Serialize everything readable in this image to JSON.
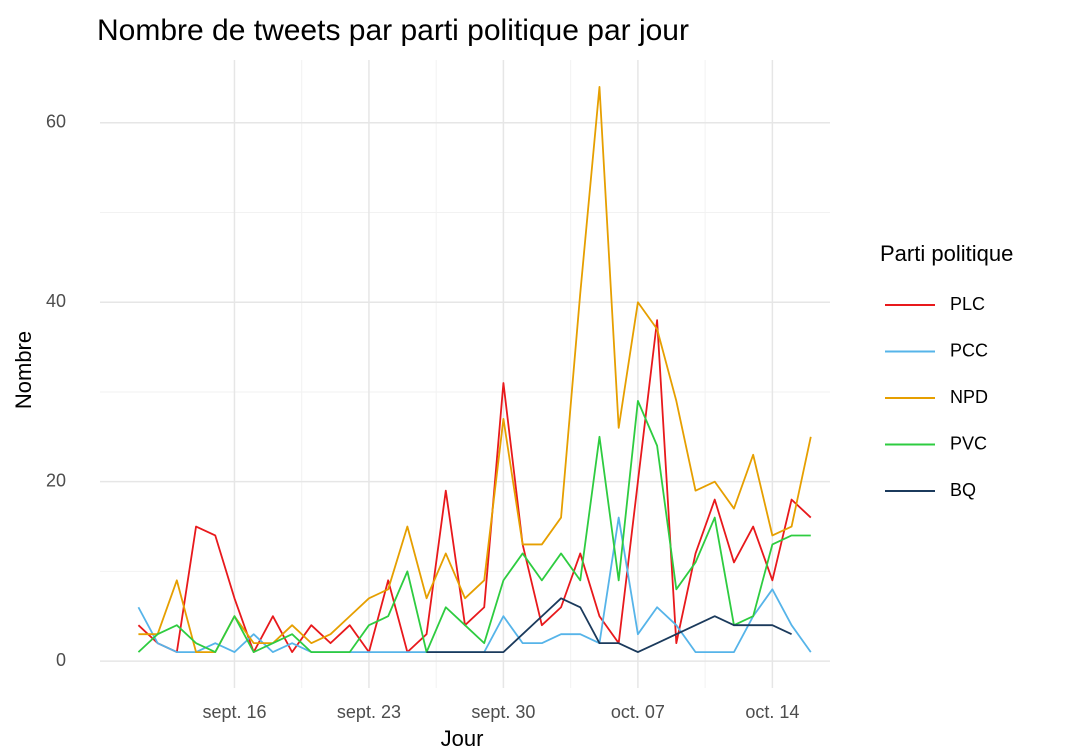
{
  "chart_data": {
    "type": "line",
    "title": "Nombre de tweets par parti politique par jour",
    "x_label": "Jour",
    "y_label": "Nombre",
    "legend_title": "Parti politique",
    "x": [
      "09-11",
      "09-12",
      "09-13",
      "09-14",
      "09-15",
      "09-16",
      "09-17",
      "09-18",
      "09-19",
      "09-20",
      "09-21",
      "09-22",
      "09-23",
      "09-24",
      "09-25",
      "09-26",
      "09-27",
      "09-28",
      "09-29",
      "09-30",
      "10-01",
      "10-02",
      "10-03",
      "10-04",
      "10-05",
      "10-06",
      "10-07",
      "10-08",
      "10-09",
      "10-10",
      "10-11",
      "10-12",
      "10-13",
      "10-14",
      "10-15",
      "10-16"
    ],
    "series": [
      {
        "name": "PLC",
        "color": "#e8191c",
        "values": [
          4,
          2,
          1,
          15,
          14,
          7,
          1,
          5,
          1,
          4,
          2,
          4,
          1,
          9,
          1,
          3,
          19,
          4,
          6,
          31,
          13,
          4,
          6,
          12,
          5,
          2,
          20,
          38,
          2,
          12,
          18,
          11,
          15,
          9,
          18,
          16
        ]
      },
      {
        "name": "PCC",
        "color": "#56b4e9",
        "values": [
          6,
          2,
          1,
          1,
          2,
          1,
          3,
          1,
          2,
          1,
          1,
          1,
          1,
          1,
          1,
          1,
          1,
          1,
          1,
          5,
          2,
          2,
          3,
          3,
          2,
          16,
          3,
          6,
          4,
          1,
          1,
          1,
          5,
          8,
          4,
          1
        ]
      },
      {
        "name": "NPD",
        "color": "#e69f00",
        "values": [
          3,
          3,
          9,
          1,
          1,
          5,
          2,
          2,
          4,
          2,
          3,
          5,
          7,
          8,
          15,
          7,
          12,
          7,
          9,
          27,
          13,
          13,
          16,
          41,
          64,
          26,
          40,
          37,
          29,
          19,
          20,
          17,
          23,
          14,
          15,
          25
        ]
      },
      {
        "name": "PVC",
        "color": "#2ecc40",
        "values": [
          1,
          3,
          4,
          2,
          1,
          5,
          1,
          2,
          3,
          1,
          1,
          1,
          4,
          5,
          10,
          1,
          6,
          4,
          2,
          9,
          12,
          9,
          12,
          9,
          25,
          9,
          29,
          24,
          8,
          11,
          16,
          4,
          5,
          13,
          14,
          14
        ]
      },
      {
        "name": "BQ",
        "color": "#1b3a5c",
        "values": [
          null,
          null,
          null,
          null,
          null,
          null,
          null,
          null,
          null,
          null,
          null,
          null,
          null,
          null,
          null,
          1,
          1,
          1,
          1,
          1,
          3,
          5,
          7,
          6,
          2,
          2,
          1,
          2,
          3,
          4,
          5,
          4,
          4,
          4,
          3,
          null
        ]
      }
    ],
    "xlim": [
      "09-09",
      "10-17"
    ],
    "xticks": [
      {
        "value": "09-16",
        "label": "sept. 16"
      },
      {
        "value": "09-23",
        "label": "sept. 23"
      },
      {
        "value": "09-30",
        "label": "sept. 30"
      },
      {
        "value": "10-07",
        "label": "oct. 07"
      },
      {
        "value": "10-14",
        "label": "oct. 14"
      }
    ],
    "ylim": [
      -3,
      67
    ],
    "yticks": [
      0,
      20,
      40,
      60
    ],
    "grid": true,
    "legend": "right"
  }
}
